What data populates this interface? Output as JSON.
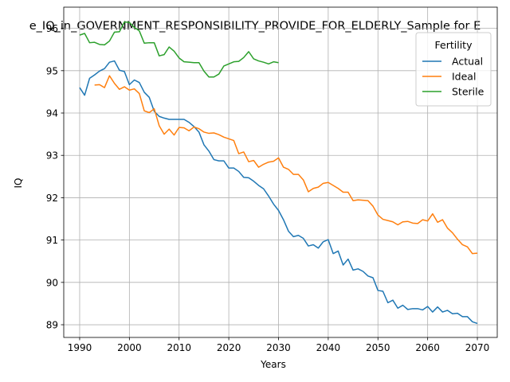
{
  "chart_data": {
    "type": "line",
    "title": "e_IQ_in_GOVERNMENT_RESPONSIBILITY_PROVIDE_FOR_ELDERLY_Sample for E",
    "xlabel": "Years",
    "ylabel": "IQ",
    "xlim": [
      1986.8,
      2074
    ],
    "ylim": [
      88.7,
      96.5
    ],
    "xticks": [
      1990,
      2000,
      2010,
      2020,
      2030,
      2040,
      2050,
      2060,
      2070
    ],
    "yticks": [
      89,
      90,
      91,
      92,
      93,
      94,
      95,
      96
    ],
    "grid": true,
    "legend": {
      "title": "Fertility",
      "placement": "top-right"
    },
    "series": [
      {
        "name": "Actual",
        "color": "#1f77b4",
        "x": [
          1990,
          1991,
          1992,
          1993,
          1994,
          1995,
          1996,
          1997,
          1998,
          1999,
          2000,
          2001,
          2002,
          2003,
          2004,
          2005,
          2006,
          2007,
          2008,
          2009,
          2010,
          2011,
          2012,
          2013,
          2014,
          2015,
          2016,
          2017,
          2018,
          2019,
          2020,
          2021,
          2022,
          2023,
          2024,
          2025,
          2026,
          2027,
          2028,
          2029,
          2030,
          2031,
          2032,
          2033,
          2034,
          2035,
          2036,
          2037,
          2038,
          2039,
          2040,
          2041,
          2042,
          2043,
          2044,
          2045,
          2046,
          2047,
          2048,
          2049,
          2050,
          2051,
          2052,
          2053,
          2054,
          2055,
          2056,
          2057,
          2058,
          2059,
          2060,
          2061,
          2062,
          2063,
          2064,
          2065,
          2066,
          2067,
          2068,
          2069,
          2070
        ],
        "values": [
          94.6,
          94.42,
          94.82,
          94.9,
          94.99,
          95.05,
          95.2,
          95.23,
          95.01,
          94.98,
          94.67,
          94.78,
          94.72,
          94.49,
          94.37,
          94.04,
          93.92,
          93.88,
          93.85,
          93.85,
          93.85,
          93.85,
          93.78,
          93.68,
          93.55,
          93.25,
          93.1,
          92.9,
          92.87,
          92.87,
          92.7,
          92.7,
          92.62,
          92.48,
          92.47,
          92.39,
          92.29,
          92.21,
          92.04,
          91.85,
          91.7,
          91.48,
          91.21,
          91.08,
          91.11,
          91.04,
          90.86,
          90.89,
          90.81,
          90.96,
          91.01,
          90.68,
          90.74,
          90.41,
          90.55,
          90.29,
          90.32,
          90.26,
          90.15,
          90.11,
          89.81,
          89.79,
          89.52,
          89.58,
          89.39,
          89.46,
          89.36,
          89.38,
          89.38,
          89.35,
          89.43,
          89.3,
          89.42,
          89.3,
          89.34,
          89.26,
          89.27,
          89.19,
          89.19,
          89.07,
          89.03
        ]
      },
      {
        "name": "Ideal",
        "color": "#ff7f0e",
        "x": [
          1993,
          1994,
          1995,
          1996,
          1997,
          1998,
          1999,
          2000,
          2001,
          2002,
          2003,
          2004,
          2005,
          2006,
          2007,
          2008,
          2009,
          2010,
          2011,
          2012,
          2013,
          2014,
          2015,
          2016,
          2017,
          2018,
          2019,
          2020,
          2021,
          2022,
          2023,
          2024,
          2025,
          2026,
          2027,
          2028,
          2029,
          2030,
          2031,
          2032,
          2033,
          2034,
          2035,
          2036,
          2037,
          2038,
          2039,
          2040,
          2041,
          2042,
          2043,
          2044,
          2045,
          2046,
          2047,
          2048,
          2049,
          2050,
          2051,
          2052,
          2053,
          2054,
          2055,
          2056,
          2057,
          2058,
          2059,
          2060,
          2061,
          2062,
          2063,
          2064,
          2065,
          2066,
          2067,
          2068,
          2069,
          2070
        ],
        "values": [
          94.66,
          94.67,
          94.6,
          94.88,
          94.7,
          94.56,
          94.62,
          94.54,
          94.57,
          94.46,
          94.05,
          94.01,
          94.1,
          93.7,
          93.5,
          93.62,
          93.48,
          93.66,
          93.65,
          93.58,
          93.67,
          93.63,
          93.55,
          93.52,
          93.53,
          93.49,
          93.43,
          93.39,
          93.35,
          93.04,
          93.08,
          92.85,
          92.88,
          92.72,
          92.79,
          92.84,
          92.86,
          92.94,
          92.72,
          92.67,
          92.55,
          92.55,
          92.42,
          92.14,
          92.22,
          92.25,
          92.34,
          92.36,
          92.29,
          92.22,
          92.13,
          92.13,
          91.93,
          91.95,
          91.94,
          91.93,
          91.8,
          91.59,
          91.49,
          91.46,
          91.43,
          91.36,
          91.43,
          91.44,
          91.4,
          91.39,
          91.48,
          91.45,
          91.62,
          91.42,
          91.48,
          91.28,
          91.17,
          91.02,
          90.89,
          90.84,
          90.68,
          90.69
        ]
      },
      {
        "name": "Sterile",
        "color": "#2ca02c",
        "x": [
          1990,
          1991,
          1992,
          1993,
          1994,
          1995,
          1996,
          1997,
          1998,
          1999,
          2000,
          2001,
          2002,
          2003,
          2004,
          2005,
          2006,
          2007,
          2008,
          2009,
          2010,
          2011,
          2012,
          2013,
          2014,
          2015,
          2016,
          2017,
          2018,
          2019,
          2020,
          2021,
          2022,
          2023,
          2024,
          2025,
          2026,
          2027,
          2028,
          2029,
          2030
        ],
        "values": [
          95.84,
          95.88,
          95.66,
          95.67,
          95.62,
          95.61,
          95.7,
          95.91,
          95.92,
          96.15,
          96.14,
          96.02,
          95.94,
          95.65,
          95.66,
          95.66,
          95.35,
          95.38,
          95.56,
          95.46,
          95.3,
          95.21,
          95.2,
          95.19,
          95.19,
          94.99,
          94.85,
          94.85,
          94.92,
          95.11,
          95.16,
          95.21,
          95.22,
          95.31,
          95.45,
          95.28,
          95.23,
          95.2,
          95.16,
          95.21,
          95.19
        ]
      }
    ]
  }
}
